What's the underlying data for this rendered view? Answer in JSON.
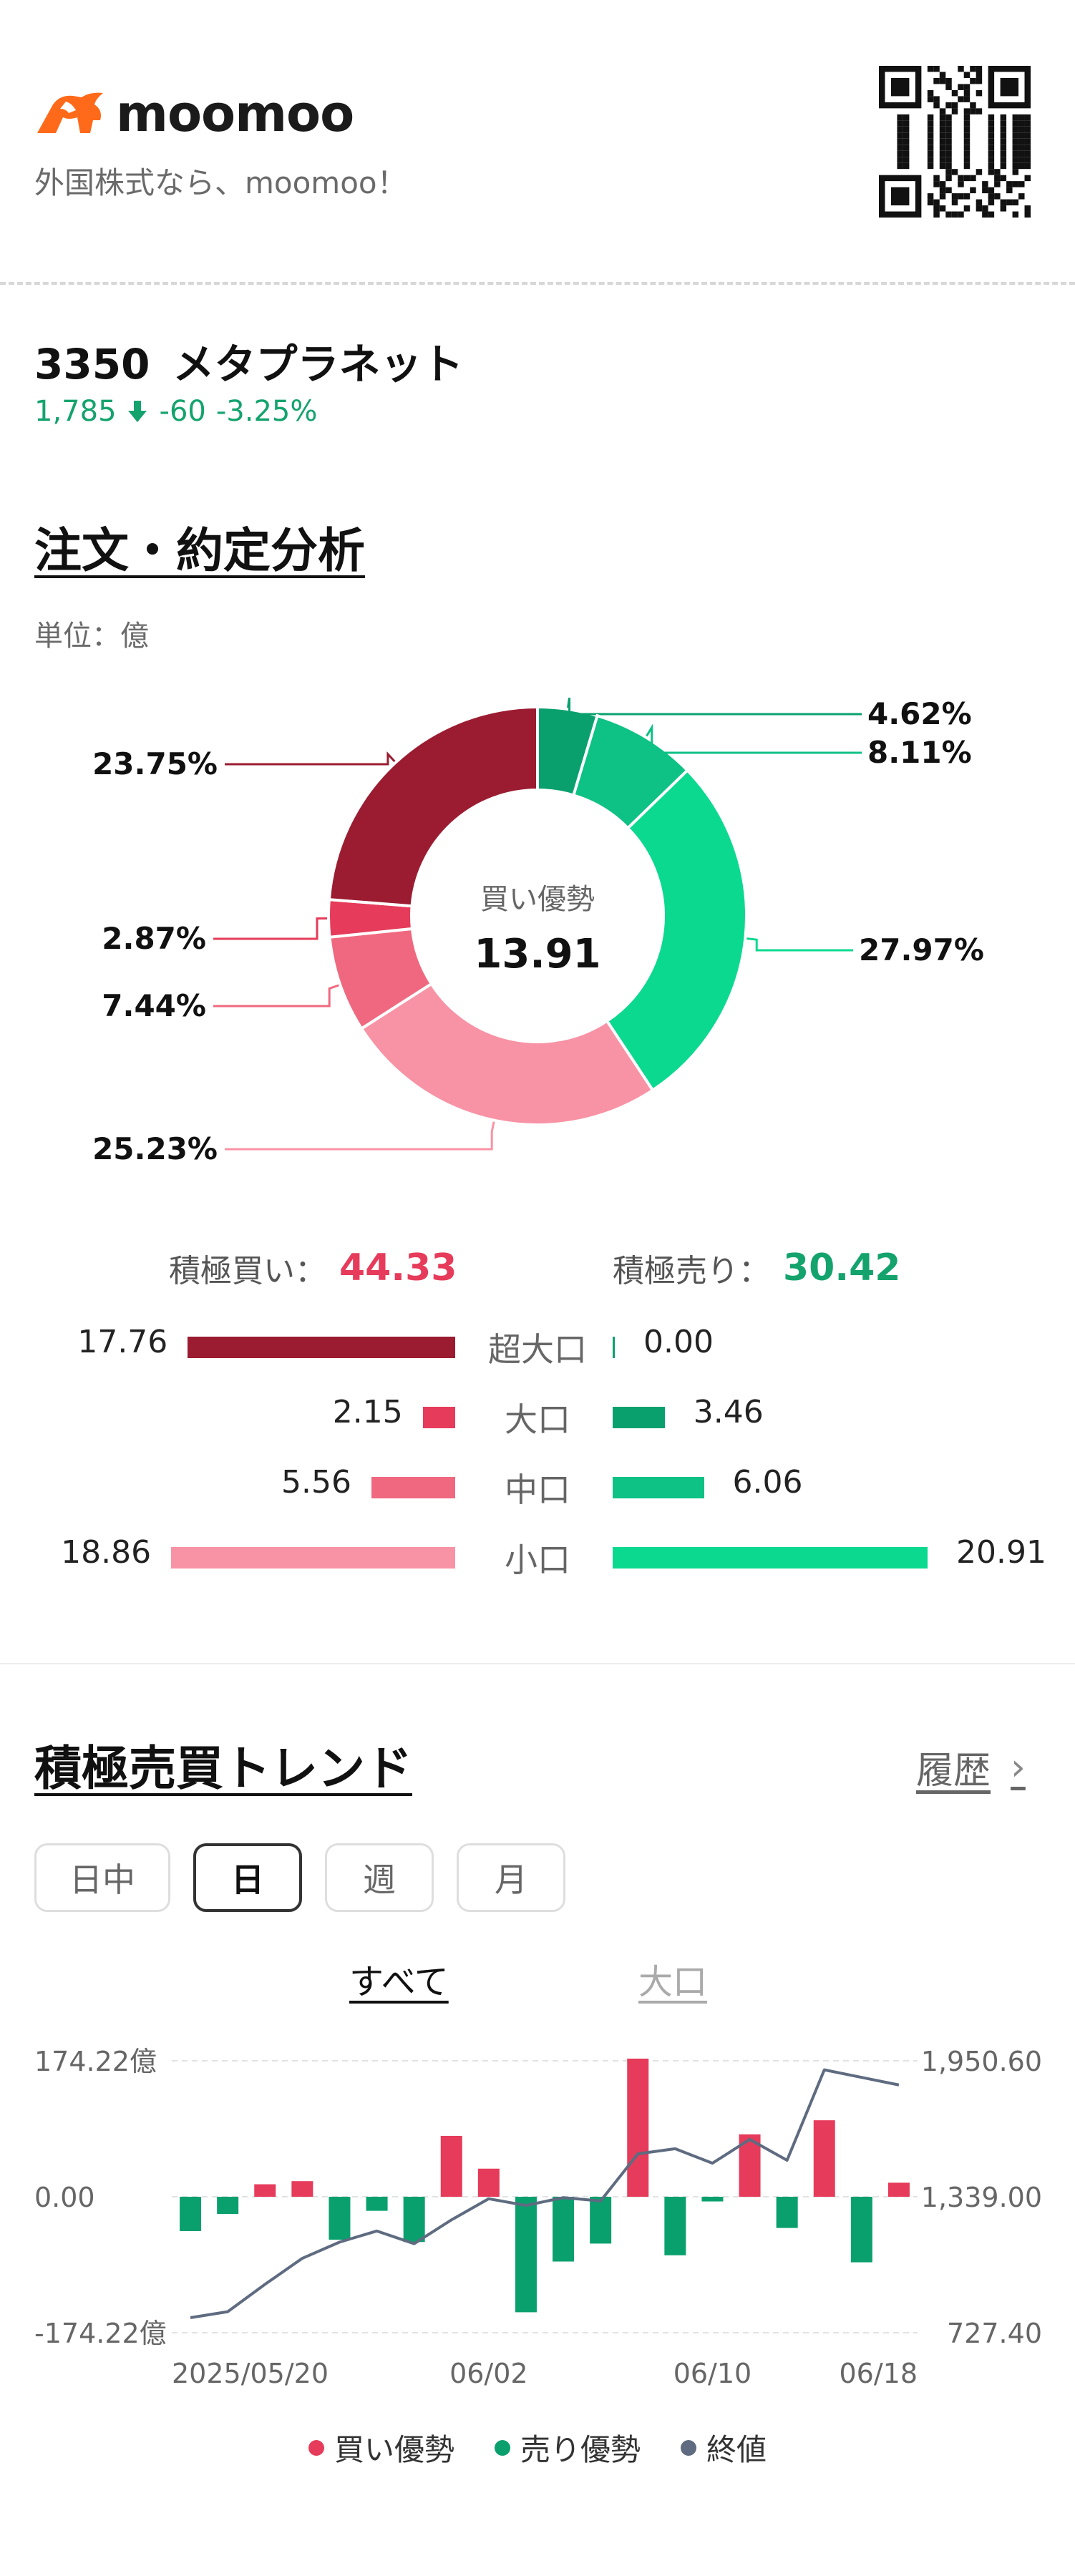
{
  "header": {
    "logo_text": "moomoo",
    "tagline": "外国株式なら、moomoo！"
  },
  "stock": {
    "code": "3350",
    "name": "メタプラネット",
    "price": "1,785",
    "change": "-60",
    "change_pct": "-3.25%",
    "down_color": "#14a36d"
  },
  "order_analysis": {
    "title": "注文・約定分析",
    "unit": "単位：億",
    "center_label": "買い優勢",
    "center_value": "13.91",
    "buy_summary_label": "積極買い：",
    "buy_summary_value": "44.33",
    "sell_summary_label": "積極売り：",
    "sell_summary_value": "30.42",
    "rows": [
      {
        "category": "超大口",
        "buy": 17.76,
        "buy_label": "17.76",
        "sell": 0.0,
        "sell_label": "0.00",
        "buy_color": "#9b1c31",
        "sell_color": "#0aa06e"
      },
      {
        "category": "大口",
        "buy": 2.15,
        "buy_label": "2.15",
        "sell": 3.46,
        "sell_label": "3.46",
        "buy_color": "#e63b5a",
        "sell_color": "#0aa06e"
      },
      {
        "category": "中口",
        "buy": 5.56,
        "buy_label": "5.56",
        "sell": 6.06,
        "sell_label": "6.06",
        "buy_color": "#f0687f",
        "sell_color": "#0ec185"
      },
      {
        "category": "小口",
        "buy": 18.86,
        "buy_label": "18.86",
        "sell": 20.91,
        "sell_label": "20.91",
        "buy_color": "#f893a5",
        "sell_color": "#0bd98f"
      }
    ]
  },
  "chart_data": [
    {
      "type": "pie",
      "slices": [
        {
          "label": "4.62%",
          "value": 4.62,
          "color": "#0aa06e"
        },
        {
          "label": "8.11%",
          "value": 8.11,
          "color": "#0ec185"
        },
        {
          "label": "27.97%",
          "value": 27.97,
          "color": "#0bd98f"
        },
        {
          "label": "25.23%",
          "value": 25.23,
          "color": "#f893a5"
        },
        {
          "label": "7.44%",
          "value": 7.44,
          "color": "#f0687f"
        },
        {
          "label": "2.87%",
          "value": 2.87,
          "color": "#e63b5a"
        },
        {
          "label": "23.75%",
          "value": 23.75,
          "color": "#9b1c31"
        }
      ]
    },
    {
      "type": "bar",
      "title": "積極売買トレンド",
      "y_left_ticks": [
        "174.22億",
        "0.00",
        "-174.22億"
      ],
      "y_left_range": [
        -174.22,
        174.22
      ],
      "y_right_ticks": [
        "1,950.60",
        "1,339.00",
        "727.40"
      ],
      "y_right_range": [
        727.4,
        1950.6
      ],
      "x_tick_labels": [
        "2025/05/20",
        "06/02",
        "06/10",
        "06/18"
      ],
      "x_tick_index": [
        0,
        8,
        14,
        19
      ],
      "net_flow": [
        -44,
        -22,
        16,
        20,
        -55,
        -18,
        -58,
        78,
        36,
        -148,
        -83,
        -60,
        177,
        -75,
        -6,
        80,
        -40,
        98,
        -84,
        18
      ],
      "close": [
        795,
        822,
        945,
        1062,
        1135,
        1185,
        1128,
        1235,
        1330,
        1300,
        1335,
        1320,
        1532,
        1555,
        1490,
        1597,
        1503,
        1910,
        1876,
        1842
      ],
      "legend": [
        {
          "name": "買い優勢",
          "color": "#e63b5a"
        },
        {
          "name": "売り優勢",
          "color": "#0aa06e"
        },
        {
          "name": "終値",
          "color": "#5e6b80"
        }
      ],
      "grid": true
    }
  ],
  "trend": {
    "title": "積極売買トレンド",
    "history_label": "履歴",
    "tabs": [
      "日中",
      "日",
      "週",
      "月"
    ],
    "active_tab": "日",
    "filters": [
      "すべて",
      "大口"
    ],
    "active_filter": "すべて"
  }
}
